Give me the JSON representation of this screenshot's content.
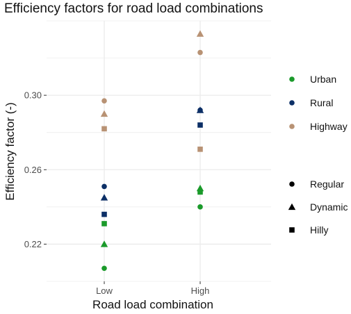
{
  "chart_data": {
    "type": "scatter",
    "title": "Efficiency factors for road load combinations",
    "xlabel": "Road load combination",
    "ylabel": "Efficiency factor (-)",
    "categories": [
      "Low",
      "High"
    ],
    "ylim": [
      0.2,
      0.34
    ],
    "yticks": [
      "0.22",
      "0.26",
      "0.30"
    ],
    "grid": true,
    "legend_placement": "right",
    "colors": {
      "Urban": "#1a9a2a",
      "Rural": "#0c2f66",
      "Highway": "#b89274"
    },
    "series": [
      {
        "name": "Urban",
        "shape": "Regular",
        "values": [
          0.207,
          0.24
        ]
      },
      {
        "name": "Urban",
        "shape": "Dynamic",
        "values": [
          0.22,
          0.25
        ]
      },
      {
        "name": "Urban",
        "shape": "Hilly",
        "values": [
          0.231,
          0.248
        ]
      },
      {
        "name": "Rural",
        "shape": "Regular",
        "values": [
          0.251,
          0.292
        ]
      },
      {
        "name": "Rural",
        "shape": "Dynamic",
        "values": [
          0.245,
          0.292
        ]
      },
      {
        "name": "Rural",
        "shape": "Hilly",
        "values": [
          0.236,
          0.284
        ]
      },
      {
        "name": "Highway",
        "shape": "Regular",
        "values": [
          0.297,
          0.323
        ]
      },
      {
        "name": "Highway",
        "shape": "Dynamic",
        "values": [
          0.29,
          0.333
        ]
      },
      {
        "name": "Highway",
        "shape": "Hilly",
        "values": [
          0.282,
          0.271
        ]
      }
    ],
    "legend_colors": [
      {
        "label": "Urban",
        "color": "#1a9a2a"
      },
      {
        "label": "Rural",
        "color": "#0c2f66"
      },
      {
        "label": "Highway",
        "color": "#b89274"
      }
    ],
    "legend_shapes": [
      {
        "label": "Regular",
        "shape": "circle"
      },
      {
        "label": "Dynamic",
        "shape": "triangle"
      },
      {
        "label": "Hilly",
        "shape": "square"
      }
    ]
  }
}
